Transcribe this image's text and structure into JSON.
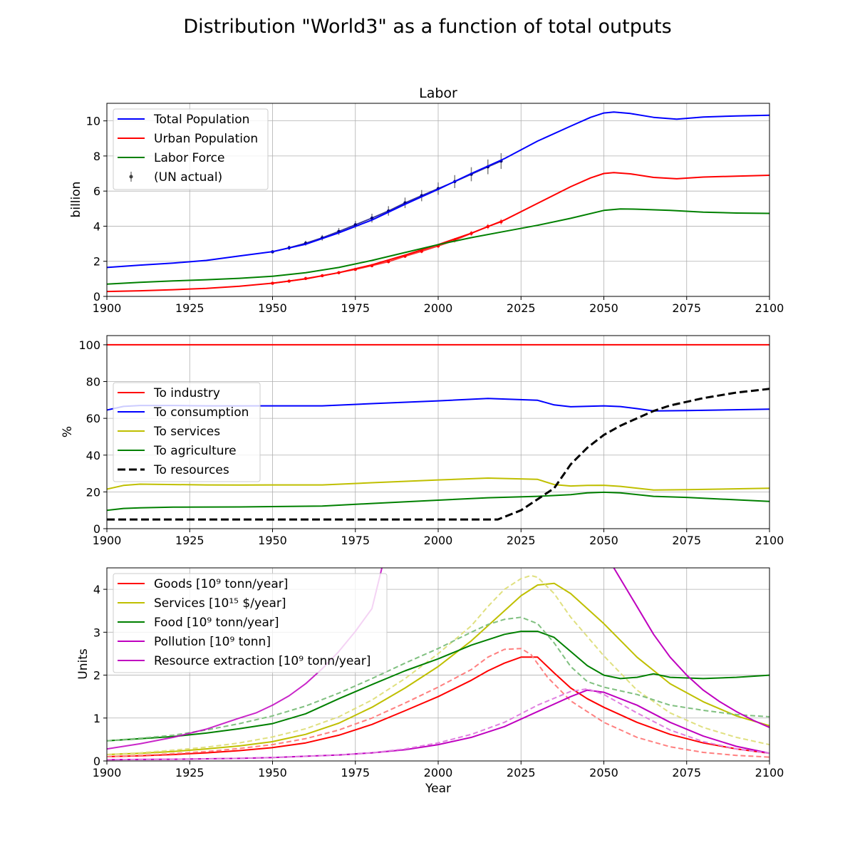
{
  "figure": {
    "title": "Distribution \"World3\" as a function of total outputs"
  },
  "chart_data": [
    {
      "type": "line",
      "title": "Labor",
      "xlabel": "",
      "ylabel": "billion",
      "xlim": [
        1900,
        2100
      ],
      "ylim": [
        0,
        11
      ],
      "xticks": [
        "1900",
        "1925",
        "1950",
        "1975",
        "2000",
        "2025",
        "2050",
        "2075",
        "2100"
      ],
      "yticks": [
        "0",
        "2",
        "4",
        "6",
        "8",
        "10"
      ],
      "grid": true,
      "legend_position": "upper-left",
      "series": [
        {
          "name": "Total Population",
          "color": "#0000ff",
          "style": "solid",
          "x": [
            1900,
            1910,
            1920,
            1930,
            1940,
            1950,
            1960,
            1970,
            1980,
            1990,
            2000,
            2010,
            2020,
            2030,
            2040,
            2046,
            2050,
            2053,
            2058,
            2065,
            2072,
            2080,
            2090,
            2100
          ],
          "y": [
            1.65,
            1.78,
            1.9,
            2.05,
            2.3,
            2.55,
            2.97,
            3.62,
            4.35,
            5.25,
            6.1,
            7.0,
            7.85,
            8.85,
            9.7,
            10.2,
            10.45,
            10.5,
            10.42,
            10.2,
            10.1,
            10.22,
            10.28,
            10.32
          ]
        },
        {
          "name": "Urban Population",
          "color": "#ff0000",
          "style": "solid",
          "x": [
            1900,
            1910,
            1920,
            1930,
            1940,
            1950,
            1960,
            1970,
            1980,
            1990,
            2000,
            2010,
            2020,
            2030,
            2040,
            2046,
            2050,
            2053,
            2058,
            2065,
            2072,
            2080,
            2090,
            2100
          ],
          "y": [
            0.28,
            0.32,
            0.38,
            0.46,
            0.58,
            0.75,
            1.0,
            1.35,
            1.8,
            2.35,
            2.95,
            3.6,
            4.35,
            5.3,
            6.25,
            6.75,
            7.0,
            7.05,
            6.98,
            6.78,
            6.7,
            6.8,
            6.85,
            6.9
          ]
        },
        {
          "name": "Labor Force",
          "color": "#008000",
          "style": "solid",
          "x": [
            1900,
            1910,
            1920,
            1930,
            1940,
            1950,
            1960,
            1970,
            1980,
            1990,
            2000,
            2010,
            2020,
            2030,
            2040,
            2050,
            2055,
            2060,
            2070,
            2080,
            2090,
            2100
          ],
          "y": [
            0.7,
            0.8,
            0.88,
            0.95,
            1.03,
            1.15,
            1.35,
            1.65,
            2.05,
            2.5,
            2.95,
            3.35,
            3.7,
            4.05,
            4.45,
            4.9,
            4.98,
            4.97,
            4.9,
            4.8,
            4.75,
            4.73
          ]
        }
      ],
      "points": [
        {
          "name": "(UN actual)",
          "color": "#000080",
          "errorbar_color": "#808080",
          "x": [
            1950,
            1955,
            1960,
            1965,
            1970,
            1975,
            1980,
            1985,
            1990,
            1995,
            2000,
            2005,
            2010,
            2015,
            2019
          ],
          "y": [
            2.54,
            2.77,
            3.03,
            3.34,
            3.7,
            4.08,
            4.46,
            4.87,
            5.33,
            5.74,
            6.14,
            6.54,
            6.96,
            7.38,
            7.71
          ],
          "err": [
            0.1,
            0.12,
            0.14,
            0.16,
            0.2,
            0.22,
            0.25,
            0.27,
            0.3,
            0.32,
            0.35,
            0.37,
            0.4,
            0.42,
            0.45
          ]
        },
        {
          "name": "",
          "color": "#ff0000",
          "errorbar_color": "#ff8080",
          "x": [
            1950,
            1955,
            1960,
            1965,
            1970,
            1975,
            1980,
            1985,
            1990,
            1995,
            2000,
            2005,
            2010,
            2015,
            2019
          ],
          "y": [
            0.75,
            0.87,
            1.02,
            1.18,
            1.35,
            1.54,
            1.75,
            1.98,
            2.29,
            2.57,
            2.87,
            3.2,
            3.59,
            3.98,
            4.25
          ],
          "err": [
            0.05,
            0.05,
            0.06,
            0.06,
            0.07,
            0.08,
            0.09,
            0.1,
            0.1,
            0.11,
            0.12,
            0.13,
            0.14,
            0.15,
            0.16
          ]
        }
      ]
    },
    {
      "type": "line",
      "title": "",
      "xlabel": "",
      "ylabel": "%",
      "xlim": [
        1900,
        2100
      ],
      "ylim": [
        0,
        105
      ],
      "xticks": [
        "1900",
        "1925",
        "1950",
        "1975",
        "2000",
        "2025",
        "2050",
        "2075",
        "2100"
      ],
      "yticks": [
        "0",
        "20",
        "40",
        "60",
        "80",
        "100"
      ],
      "grid": true,
      "legend_position": "center-left",
      "series": [
        {
          "name": "To industry",
          "color": "#ff0000",
          "style": "solid",
          "x": [
            1900,
            2100
          ],
          "y": [
            100,
            100
          ]
        },
        {
          "name": "To consumption",
          "color": "#0000ff",
          "style": "solid",
          "x": [
            1900,
            1905,
            1910,
            1920,
            1930,
            1940,
            1950,
            1965,
            1980,
            2000,
            2015,
            2030,
            2035,
            2040,
            2050,
            2055,
            2060,
            2065,
            2075,
            2100
          ],
          "y": [
            64.5,
            66.5,
            67,
            67,
            66.8,
            66.8,
            66.8,
            66.8,
            68,
            69.5,
            70.8,
            69.8,
            67.3,
            66.3,
            66.8,
            66.4,
            65.3,
            64,
            64.2,
            65
          ]
        },
        {
          "name": "To services",
          "color": "#bfbf00",
          "style": "solid",
          "x": [
            1900,
            1905,
            1910,
            1930,
            1940,
            1950,
            1965,
            1980,
            2000,
            2015,
            2030,
            2035,
            2040,
            2045,
            2050,
            2055,
            2065,
            2075,
            2100
          ],
          "y": [
            21.5,
            23.5,
            24.2,
            23.8,
            23.7,
            23.8,
            23.8,
            25,
            26.5,
            27.5,
            26.8,
            24,
            23.2,
            23.5,
            23.6,
            23,
            21,
            21.2,
            22
          ]
        },
        {
          "name": "To agriculture",
          "color": "#008000",
          "style": "solid",
          "x": [
            1900,
            1905,
            1910,
            1920,
            1940,
            1965,
            1980,
            2000,
            2015,
            2030,
            2040,
            2045,
            2050,
            2055,
            2065,
            2075,
            2100
          ],
          "y": [
            10,
            11,
            11.3,
            11.7,
            11.8,
            12.3,
            13.7,
            15.5,
            16.8,
            17.6,
            18.5,
            19.5,
            19.8,
            19.5,
            17.6,
            17,
            14.8
          ]
        },
        {
          "name": "To resources",
          "color": "#000000",
          "style": "dashed",
          "x": [
            1900,
            2000,
            2018,
            2025,
            2030,
            2035,
            2040,
            2045,
            2050,
            2055,
            2060,
            2065,
            2070,
            2080,
            2090,
            2100
          ],
          "y": [
            5,
            5,
            5,
            10,
            16,
            22,
            35,
            44,
            51,
            56,
            60,
            64,
            67,
            71,
            74,
            76
          ]
        }
      ]
    },
    {
      "type": "line",
      "title": "",
      "xlabel": "Year",
      "ylabel": "Units",
      "xlim": [
        1900,
        2100
      ],
      "ylim": [
        0,
        4.5
      ],
      "xticks": [
        "1900",
        "1925",
        "1950",
        "1975",
        "2000",
        "2025",
        "2050",
        "2075",
        "2100"
      ],
      "yticks": [
        "0",
        "1",
        "2",
        "3",
        "4"
      ],
      "grid": true,
      "legend_position": "upper-left",
      "series": [
        {
          "name": "Goods [10⁹ tonn/year]",
          "color": "#ff0000",
          "style": "solid",
          "x": [
            1900,
            1910,
            1920,
            1930,
            1940,
            1950,
            1960,
            1970,
            1980,
            1990,
            2000,
            2010,
            2015,
            2020,
            2025,
            2030,
            2035,
            2040,
            2045,
            2050,
            2060,
            2070,
            2080,
            2090,
            2100
          ],
          "y": [
            0.1,
            0.12,
            0.15,
            0.19,
            0.24,
            0.31,
            0.42,
            0.6,
            0.85,
            1.17,
            1.5,
            1.88,
            2.1,
            2.28,
            2.42,
            2.42,
            2.05,
            1.7,
            1.45,
            1.25,
            0.9,
            0.62,
            0.42,
            0.28,
            0.18
          ]
        },
        {
          "name": "",
          "color": "#ff8080",
          "style": "dashed",
          "x": [
            1900,
            1910,
            1920,
            1930,
            1940,
            1950,
            1960,
            1970,
            1980,
            1990,
            2000,
            2010,
            2015,
            2020,
            2025,
            2028,
            2033,
            2040,
            2050,
            2060,
            2070,
            2080,
            2090,
            2100
          ],
          "y": [
            0.1,
            0.13,
            0.17,
            0.22,
            0.29,
            0.38,
            0.52,
            0.72,
            1.0,
            1.35,
            1.72,
            2.13,
            2.42,
            2.6,
            2.62,
            2.48,
            1.95,
            1.4,
            0.9,
            0.55,
            0.33,
            0.2,
            0.13,
            0.09
          ]
        },
        {
          "name": "Services [10¹⁵ $/year]",
          "color": "#bfbf00",
          "style": "solid",
          "x": [
            1900,
            1910,
            1920,
            1930,
            1940,
            1950,
            1960,
            1970,
            1980,
            1990,
            2000,
            2010,
            2020,
            2025,
            2030,
            2035,
            2040,
            2050,
            2060,
            2070,
            2080,
            2090,
            2100
          ],
          "y": [
            0.15,
            0.18,
            0.22,
            0.28,
            0.35,
            0.45,
            0.62,
            0.88,
            1.25,
            1.7,
            2.2,
            2.8,
            3.5,
            3.85,
            4.1,
            4.14,
            3.9,
            3.2,
            2.42,
            1.8,
            1.38,
            1.05,
            0.82
          ]
        },
        {
          "name": "",
          "color": "#e0e080",
          "style": "dashed",
          "x": [
            1900,
            1910,
            1920,
            1930,
            1940,
            1950,
            1960,
            1970,
            1980,
            1990,
            2000,
            2010,
            2015,
            2020,
            2025,
            2028,
            2030,
            2035,
            2040,
            2045,
            2050,
            2060,
            2070,
            2080,
            2090,
            2100
          ],
          "y": [
            0.15,
            0.19,
            0.25,
            0.32,
            0.42,
            0.56,
            0.75,
            1.03,
            1.42,
            1.92,
            2.5,
            3.15,
            3.6,
            4.0,
            4.25,
            4.32,
            4.28,
            3.9,
            3.35,
            2.9,
            2.45,
            1.65,
            1.12,
            0.78,
            0.55,
            0.38
          ]
        },
        {
          "name": "Food [10⁹ tonn/year]",
          "color": "#008000",
          "style": "solid",
          "x": [
            1900,
            1910,
            1920,
            1930,
            1940,
            1950,
            1960,
            1970,
            1980,
            1990,
            2000,
            2010,
            2020,
            2025,
            2030,
            2035,
            2040,
            2045,
            2050,
            2055,
            2060,
            2065,
            2070,
            2080,
            2090,
            2100
          ],
          "y": [
            0.47,
            0.52,
            0.57,
            0.65,
            0.75,
            0.87,
            1.1,
            1.45,
            1.78,
            2.1,
            2.38,
            2.7,
            2.95,
            3.02,
            3.02,
            2.88,
            2.55,
            2.22,
            2.0,
            1.92,
            1.95,
            2.03,
            1.95,
            1.92,
            1.95,
            2.0
          ]
        },
        {
          "name": "",
          "color": "#80c080",
          "style": "dashed",
          "x": [
            1900,
            1910,
            1920,
            1930,
            1940,
            1950,
            1960,
            1970,
            1980,
            1990,
            2000,
            2010,
            2015,
            2020,
            2025,
            2030,
            2035,
            2040,
            2045,
            2050,
            2060,
            2070,
            2080,
            2090,
            2100
          ],
          "y": [
            0.47,
            0.53,
            0.6,
            0.72,
            0.87,
            1.05,
            1.28,
            1.58,
            1.92,
            2.28,
            2.62,
            3.0,
            3.18,
            3.3,
            3.35,
            3.2,
            2.75,
            2.2,
            1.85,
            1.72,
            1.55,
            1.3,
            1.18,
            1.08,
            1.03
          ]
        },
        {
          "name": "Pollution [10⁹ tonn]",
          "color": "#bf00bf",
          "style": "solid",
          "x": [
            1900,
            1910,
            1920,
            1930,
            1940,
            1950,
            1960,
            1970,
            1980,
            1990,
            2000,
            2010,
            2020,
            2030,
            2040,
            2045,
            2050,
            2060,
            2070,
            2080,
            2090,
            2100
          ],
          "y": [
            0.03,
            0.035,
            0.04,
            0.05,
            0.06,
            0.08,
            0.11,
            0.14,
            0.19,
            0.26,
            0.38,
            0.55,
            0.8,
            1.15,
            1.5,
            1.65,
            1.6,
            1.3,
            0.9,
            0.58,
            0.34,
            0.18
          ]
        },
        {
          "name": "",
          "color": "#e080e0",
          "style": "dashed",
          "x": [
            1900,
            1910,
            1920,
            1930,
            1940,
            1950,
            1960,
            1970,
            1980,
            1990,
            2000,
            2010,
            2020,
            2030,
            2040,
            2045,
            2050,
            2060,
            2070,
            2080,
            2090,
            2100
          ],
          "y": [
            0.03,
            0.035,
            0.04,
            0.05,
            0.06,
            0.08,
            0.11,
            0.14,
            0.19,
            0.28,
            0.42,
            0.62,
            0.9,
            1.3,
            1.62,
            1.68,
            1.55,
            1.12,
            0.72,
            0.45,
            0.28,
            0.18
          ]
        },
        {
          "name": "Resource extraction [10⁹ tonn/year]",
          "color": "#bf00bf",
          "style": "solid",
          "x": [
            2053,
            2060,
            2065,
            2070,
            2075,
            2080,
            2085,
            2090,
            2095,
            2100
          ],
          "y": [
            4.5,
            3.6,
            2.95,
            2.42,
            2.0,
            1.65,
            1.38,
            1.15,
            0.95,
            0.78
          ]
        },
        {
          "name": "",
          "color": "#bf00bf",
          "style": "solid",
          "fade": true,
          "x": [
            1900,
            1910,
            1920,
            1930,
            1940,
            1945,
            1950,
            1955,
            1960,
            1965,
            1970,
            1975,
            1980,
            1983
          ],
          "y": [
            0.28,
            0.4,
            0.55,
            0.74,
            1.0,
            1.12,
            1.3,
            1.52,
            1.8,
            2.15,
            2.55,
            3.02,
            3.55,
            4.5
          ]
        }
      ]
    }
  ]
}
